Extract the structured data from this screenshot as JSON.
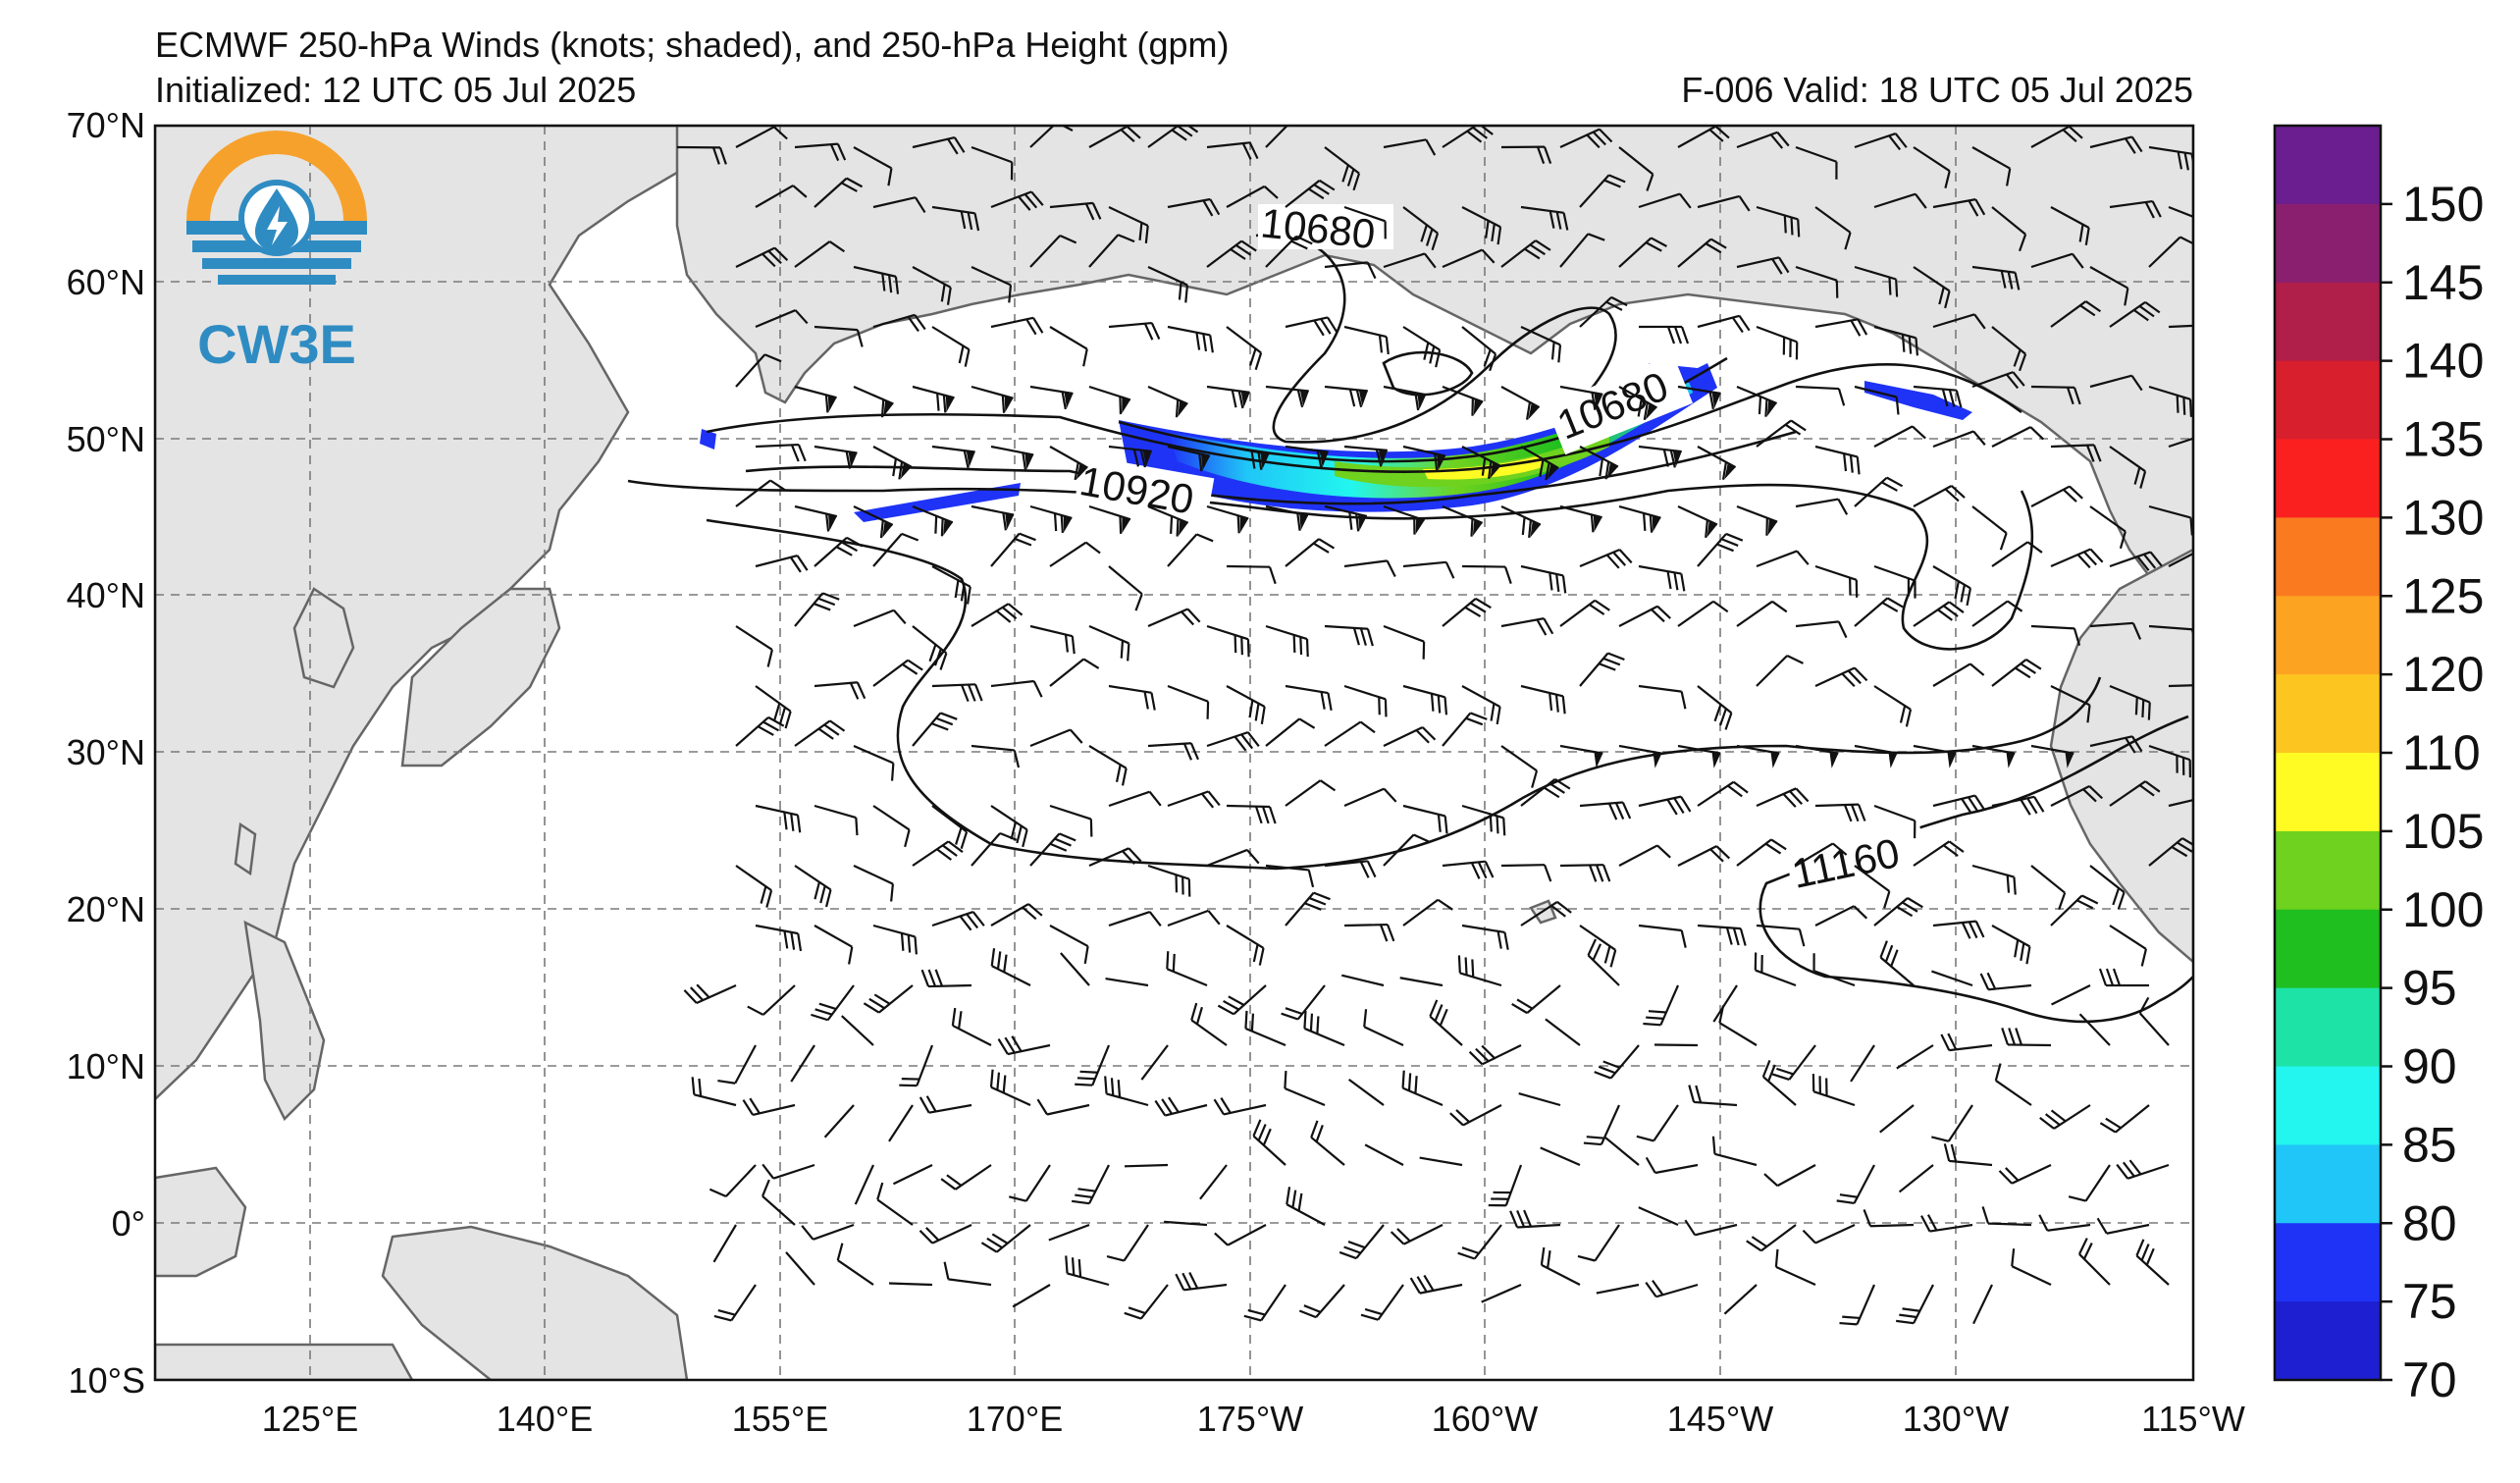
{
  "title": {
    "line1": "ECMWF 250-hPa Winds (knots; shaded), and 250-hPa Height (gpm)",
    "line2_left": "Initialized: 12 UTC 05 Jul 2025",
    "line2_right": "F-006  Valid: 18 UTC 05 Jul 2025"
  },
  "logo": {
    "text": "CW3E",
    "colors": {
      "orange": "#f6a12c",
      "blue": "#2f8cc2"
    },
    "icon": "water-drop-lightning-icon"
  },
  "axes": {
    "lat_labels": [
      "70°N",
      "60°N",
      "50°N",
      "40°N",
      "30°N",
      "20°N",
      "10°N",
      "0°",
      "10°S"
    ],
    "lon_labels": [
      "125°E",
      "140°E",
      "155°E",
      "170°E",
      "175°W",
      "160°W",
      "145°W",
      "130°W",
      "115°W"
    ]
  },
  "contour_labels": {
    "c1": "10680",
    "c2": "10680",
    "c3": "10920",
    "c4": "11160"
  },
  "colorbar": {
    "labels": [
      "150",
      "145",
      "140",
      "135",
      "130",
      "125",
      "120",
      "110",
      "105",
      "100",
      "95",
      "90",
      "85",
      "80",
      "75",
      "70"
    ],
    "colors": [
      "#6a1e8f",
      "#8a1f6f",
      "#b01e4a",
      "#d81f2e",
      "#fb2020",
      "#fa7a20",
      "#fca321",
      "#fdc51f",
      "#fffb23",
      "#6fd21f",
      "#1fbf1f",
      "#1ee3a7",
      "#22f6ef",
      "#20c6f7",
      "#1f33f6",
      "#1e1fd0"
    ]
  }
}
